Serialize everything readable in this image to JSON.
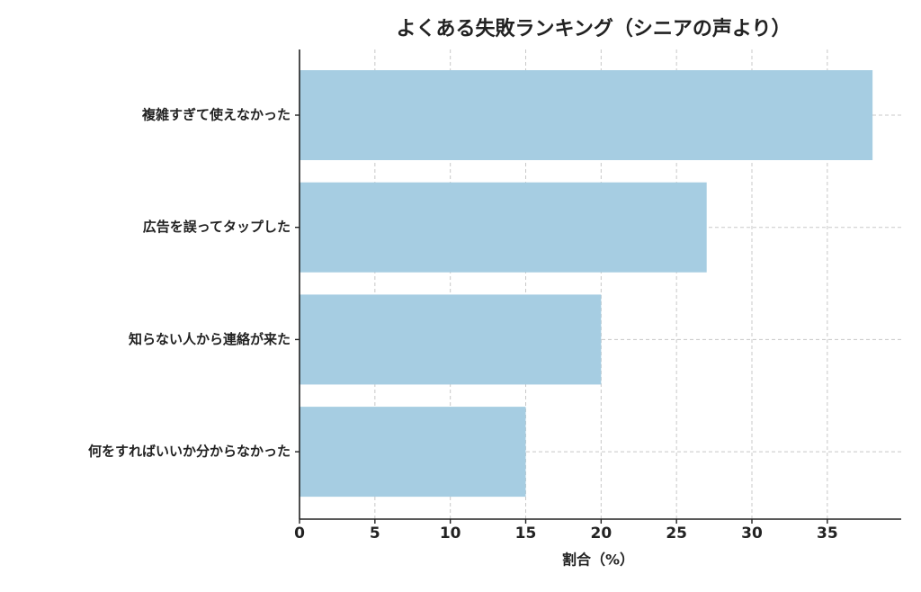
{
  "chart_data": {
    "type": "barh",
    "title": "よくある失敗ランキング（シニアの声より）",
    "xlabel": "割合（%）",
    "categories": [
      "複雑すぎて使えなかった",
      "広告を誤ってタップした",
      "知らない人から連絡が来た",
      "何をすればいいか分からなかった"
    ],
    "values": [
      38,
      27,
      20,
      15
    ],
    "color": "#a6cde2",
    "xlim": [
      0,
      39.9
    ],
    "xticks": [
      0,
      5,
      10,
      15,
      20,
      25,
      30,
      35
    ],
    "grid": true
  }
}
